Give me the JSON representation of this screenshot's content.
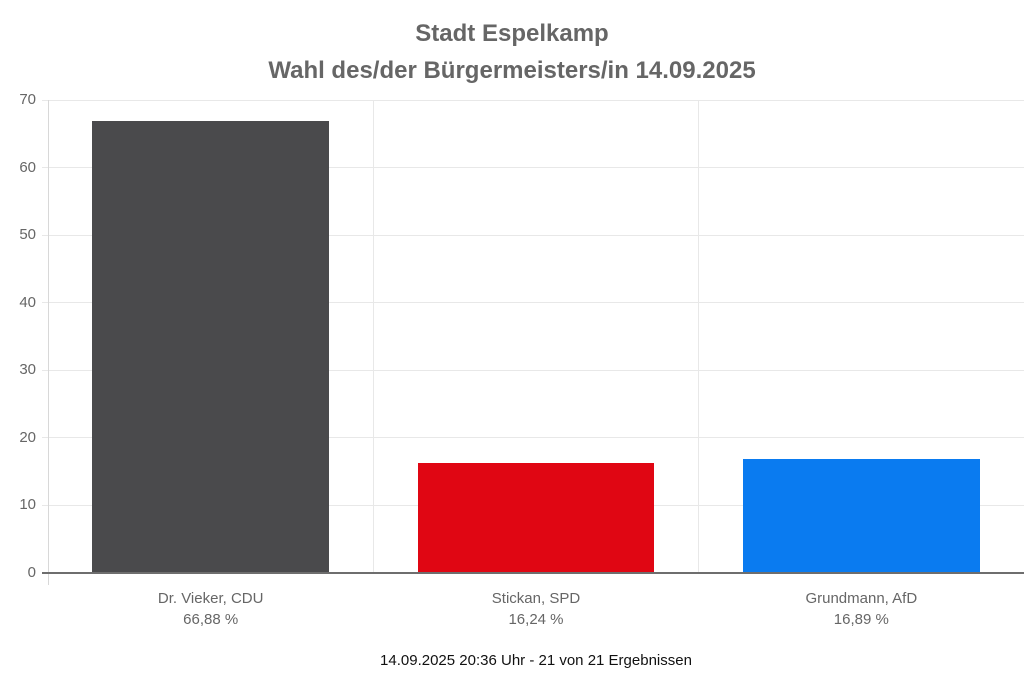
{
  "chart_data": {
    "type": "bar",
    "title": "Stadt Espelkamp — Wahl des/der Bürgermeisters/in 14.09.2025",
    "title_lines": [
      "Stadt Espelkamp",
      "Wahl des/der Bürgermeisters/in 14.09.2025"
    ],
    "categories": [
      "Dr. Vieker, CDU",
      "Stickan, SPD",
      "Grundmann, AfD"
    ],
    "values": [
      66.88,
      16.24,
      16.89
    ],
    "value_labels": [
      "66,88 %",
      "16,24 %",
      "16,89 %"
    ],
    "series": [
      {
        "name": "Dr. Vieker, CDU",
        "value": 66.88,
        "color": "#4a4a4c"
      },
      {
        "name": "Stickan, SPD",
        "value": 16.24,
        "color": "#e00613"
      },
      {
        "name": "Grundmann, AfD",
        "value": 16.89,
        "color": "#0a7bf0"
      }
    ],
    "bar_colors": [
      "#4a4a4c",
      "#e00613",
      "#0a7bf0"
    ],
    "xlabel": "",
    "ylabel": "",
    "ylim": [
      0,
      70
    ],
    "ytick_step": 10,
    "ytick_labels": [
      "0",
      "10",
      "20",
      "30",
      "40",
      "50",
      "60",
      "70"
    ],
    "grid": true,
    "legend": "none",
    "footer": "14.09.2025 20:36 Uhr - 21 von 21 Ergebnissen"
  }
}
